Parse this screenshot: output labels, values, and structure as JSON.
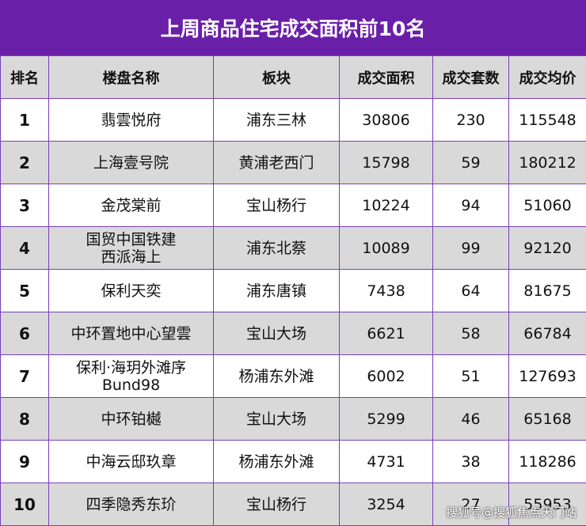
{
  "title": "上周商品住宅成交面积前10名",
  "columns": [
    "排名",
    "楼盘名称",
    "板块",
    "成交面积",
    "成交套数",
    "成交均价"
  ],
  "rows": [
    {
      "rank": "1",
      "name": "翡雲悦府",
      "area": "浦东三林",
      "size": "30806",
      "units": "230",
      "price": "115548"
    },
    {
      "rank": "2",
      "name": "上海壹号院",
      "area": "黄浦老西门",
      "size": "15798",
      "units": "59",
      "price": "180212"
    },
    {
      "rank": "3",
      "name": "金茂棠前",
      "area": "宝山杨行",
      "size": "10224",
      "units": "94",
      "price": "51060"
    },
    {
      "rank": "4",
      "name": "国贸中国铁建\n西派海上",
      "area": "浦东北蔡",
      "size": "10089",
      "units": "99",
      "price": "92120"
    },
    {
      "rank": "5",
      "name": "保利天奕",
      "area": "浦东唐镇",
      "size": "7438",
      "units": "64",
      "price": "81675"
    },
    {
      "rank": "6",
      "name": "中环置地中心望雲",
      "area": "宝山大场",
      "size": "6621",
      "units": "58",
      "price": "66784"
    },
    {
      "rank": "7",
      "name": "保利·海玥外滩序\nBund98",
      "area": "杨浦东外滩",
      "size": "6002",
      "units": "51",
      "price": "127693"
    },
    {
      "rank": "8",
      "name": "中环铂樾",
      "area": "宝山大场",
      "size": "5299",
      "units": "46",
      "price": "65168"
    },
    {
      "rank": "9",
      "name": "中海云邸玖章",
      "area": "杨浦东外滩",
      "size": "4731",
      "units": "38",
      "price": "118286"
    },
    {
      "rank": "10",
      "name": "四季隐秀东玠",
      "area": "宝山杨行",
      "size": "3254",
      "units": "27",
      "price": "55953"
    }
  ],
  "watermark": "搜狐号@搜狐焦点天门站",
  "colors": {
    "header_bg": "#6a1fa8",
    "stripe": "#d9d9d9",
    "border": "#7a3fb5"
  }
}
